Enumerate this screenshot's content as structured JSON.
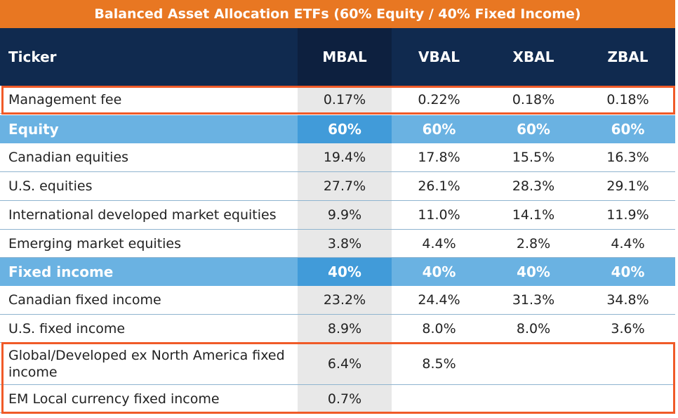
{
  "title": "Balanced Asset Allocation ETFs (60% Equity / 40% Fixed Income)",
  "header": {
    "label": "Ticker",
    "tickers": [
      "MBAL",
      "VBAL",
      "XBAL",
      "ZBAL"
    ]
  },
  "rows": [
    {
      "label": "Management fee",
      "values": [
        "0.17%",
        "0.22%",
        "0.18%",
        "0.18%"
      ],
      "type": "data",
      "highlighted": true
    },
    {
      "label": "Equity",
      "values": [
        "60%",
        "60%",
        "60%",
        "60%"
      ],
      "type": "section"
    },
    {
      "label": "Canadian equities",
      "values": [
        "19.4%",
        "17.8%",
        "15.5%",
        "16.3%"
      ],
      "type": "data"
    },
    {
      "label": "U.S. equities",
      "values": [
        "27.7%",
        "26.1%",
        "28.3%",
        "29.1%"
      ],
      "type": "data"
    },
    {
      "label": "International developed market equities",
      "values": [
        "9.9%",
        "11.0%",
        "14.1%",
        "11.9%"
      ],
      "type": "data"
    },
    {
      "label": "Emerging market equities",
      "values": [
        "3.8%",
        "4.4%",
        "2.8%",
        "4.4%"
      ],
      "type": "data"
    },
    {
      "label": "Fixed income",
      "values": [
        "40%",
        "40%",
        "40%",
        "40%"
      ],
      "type": "section"
    },
    {
      "label": "Canadian fixed income",
      "values": [
        "23.2%",
        "24.4%",
        "31.3%",
        "34.8%"
      ],
      "type": "data"
    },
    {
      "label": "U.S. fixed income",
      "values": [
        "8.9%",
        "8.0%",
        "8.0%",
        "3.6%"
      ],
      "type": "data"
    },
    {
      "label": "Global/Developed ex North America fixed income",
      "values": [
        "6.4%",
        "8.5%",
        "",
        ""
      ],
      "type": "data",
      "highlighted": true
    },
    {
      "label": "EM Local currency fixed income",
      "values": [
        "0.7%",
        "",
        "",
        ""
      ],
      "type": "data",
      "highlighted": true
    }
  ],
  "colors": {
    "title_bg": "#E87722",
    "header_bg": "#102a4f",
    "section_bg": "#6ab2e2",
    "section_mbal_bg": "#419bd9",
    "mbal_column_bg": "#e8e8e8",
    "highlight_border": "#F05A28"
  }
}
